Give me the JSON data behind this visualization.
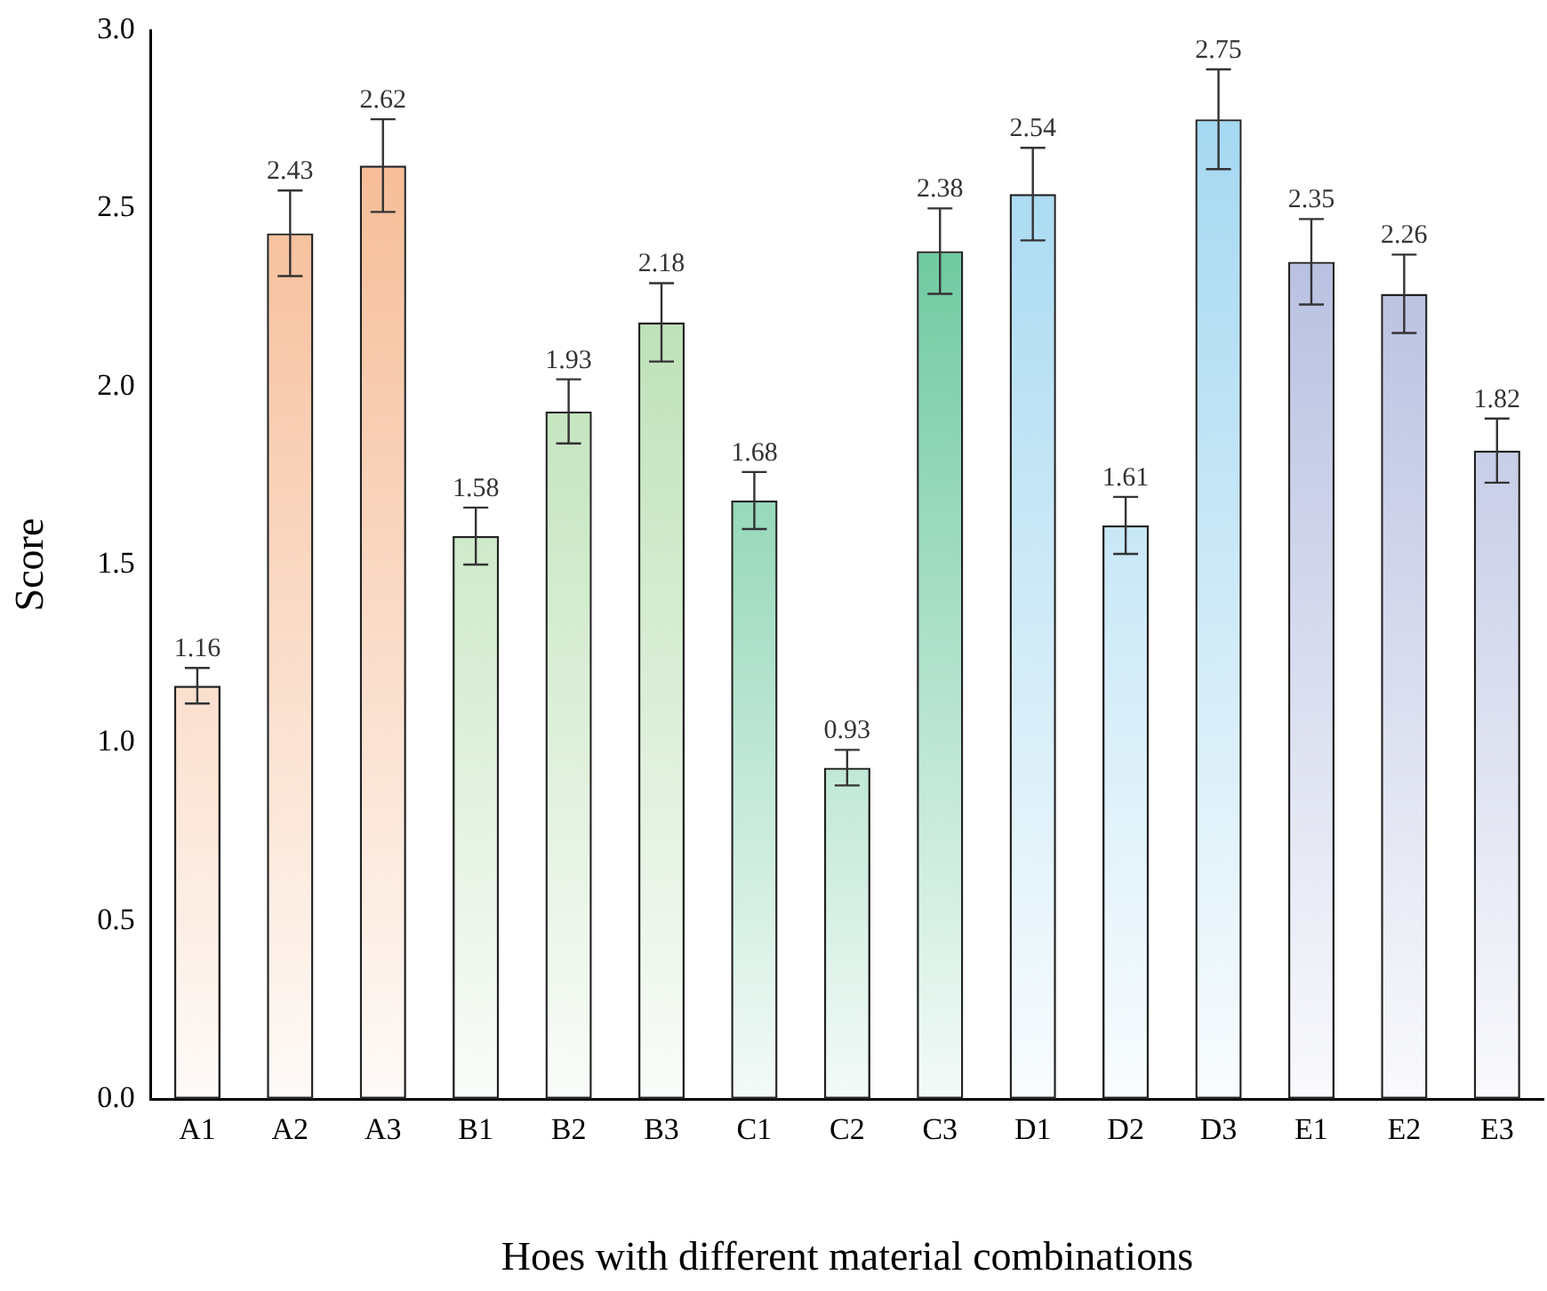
{
  "chart_data": {
    "type": "bar",
    "categories": [
      "A1",
      "A2",
      "A3",
      "B1",
      "B2",
      "B3",
      "C1",
      "C2",
      "C3",
      "D1",
      "D2",
      "D3",
      "E1",
      "E2",
      "E3"
    ],
    "values": [
      1.16,
      2.43,
      2.62,
      1.58,
      1.93,
      2.18,
      1.68,
      0.93,
      2.38,
      2.54,
      1.61,
      2.75,
      2.35,
      2.26,
      1.82
    ],
    "errors": [
      0.05,
      0.12,
      0.13,
      0.08,
      0.09,
      0.11,
      0.08,
      0.05,
      0.12,
      0.13,
      0.08,
      0.14,
      0.12,
      0.11,
      0.09
    ],
    "colors": [
      "#f5b48a",
      "#f5b48a",
      "#f5b48a",
      "#a8d8a0",
      "#a8d8a0",
      "#a8d8a0",
      "#4dbd8a",
      "#4dbd8a",
      "#4dbd8a",
      "#9dd5f0",
      "#9dd5f0",
      "#9dd5f0",
      "#a7b1da",
      "#a7b1da",
      "#a7b1da"
    ],
    "ylim": [
      0,
      3
    ],
    "yticks": [
      {
        "value": 0,
        "label": "0.0"
      },
      {
        "value": 0.5,
        "label": "0.5"
      },
      {
        "value": 1,
        "label": "1.0"
      },
      {
        "value": 1.5,
        "label": "1.5"
      },
      {
        "value": 2,
        "label": "2.0"
      },
      {
        "value": 2.5,
        "label": "2.5"
      },
      {
        "value": 3,
        "label": "3.0"
      }
    ],
    "xlabel": "Hoes with different material combinations",
    "ylabel": "Score",
    "data_labels": true,
    "grid": false,
    "legend": false
  }
}
